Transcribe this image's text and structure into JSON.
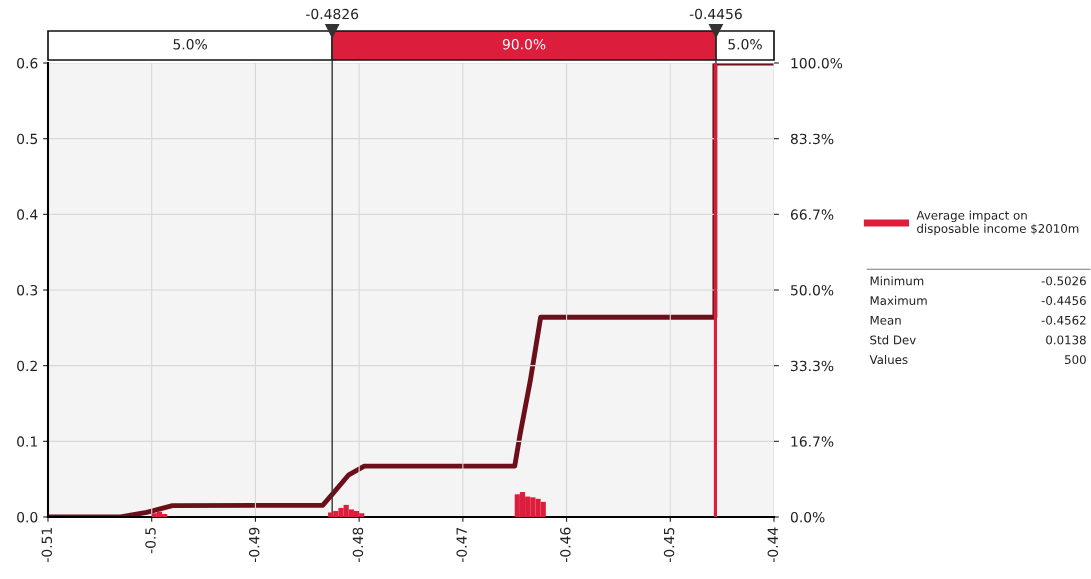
{
  "chart_data": {
    "type": "histogram",
    "bins": [
      -0.5,
      -0.4995,
      -0.499,
      -0.4985,
      -0.483,
      -0.4825,
      -0.482,
      -0.4815,
      -0.481,
      -0.4805,
      -0.48,
      -0.4795,
      -0.465,
      -0.4645,
      -0.464,
      -0.4635,
      -0.463,
      -0.4625,
      -0.462,
      -0.4458,
      -0.4455
    ],
    "series": [
      {
        "name": "Average impact on disposable income $2010m",
        "color": "#dc1e3c",
        "values": [
          0.005,
          0.007,
          0.004,
          0,
          0.006,
          0.008,
          0.012,
          0.016,
          0.01,
          0.008,
          0.005,
          0,
          0.03,
          0.033,
          0.027,
          0.026,
          0.024,
          0.02,
          0,
          0.6
        ]
      },
      {
        "type": "line",
        "axis": "y2",
        "color": "#6b0f1a",
        "x": [
          -0.51,
          -0.503,
          -0.5005,
          -0.498,
          -0.4835,
          -0.4826,
          -0.481,
          -0.4795,
          -0.465,
          -0.4645,
          -0.4635,
          -0.4625,
          -0.4457,
          -0.4457,
          -0.44
        ],
        "values": [
          0,
          0,
          1,
          2.5,
          2.6,
          5,
          9.3,
          11.2,
          11.2,
          18,
          30,
          44,
          44,
          100,
          100
        ]
      }
    ],
    "xlim": [
      -0.51,
      -0.44
    ],
    "xticks": [
      -0.51,
      -0.5,
      -0.49,
      -0.48,
      -0.47,
      -0.46,
      -0.45,
      -0.44
    ],
    "ylim": [
      0,
      0.6
    ],
    "yticks": [
      {
        "value": 0,
        "label": "0.0"
      },
      {
        "value": 0.1,
        "label": "0.1"
      },
      {
        "value": 0.2,
        "label": "0.2"
      },
      {
        "value": 0.3,
        "label": "0.3"
      },
      {
        "value": 0.4,
        "label": "0.4"
      },
      {
        "value": 0.5,
        "label": "0.5"
      },
      {
        "value": 0.6,
        "label": "0.6"
      }
    ],
    "y2lim": [
      0,
      100
    ],
    "y2ticks": [
      {
        "value": 0,
        "label": "0.0%"
      },
      {
        "value": 16.667,
        "label": "16.7%"
      },
      {
        "value": 33.333,
        "label": "33.3%"
      },
      {
        "value": 50,
        "label": "50.0%"
      },
      {
        "value": 66.667,
        "label": "66.7%"
      },
      {
        "value": 83.333,
        "label": "83.3%"
      },
      {
        "value": 100,
        "label": "100.0%"
      }
    ],
    "ref_lines": [
      {
        "axis": "x",
        "value": -0.4826,
        "label": "-0.4826",
        "color": "#333333"
      },
      {
        "axis": "x",
        "value": -0.4456,
        "label": "-0.4456",
        "color": "#333333"
      }
    ],
    "annotations": [
      "5.0%",
      "90.0%",
      "5.0%",
      "Minimum -0.5026",
      "Maximum -0.4456",
      "Mean -0.4562",
      "Std Dev 0.0138",
      "Values 500"
    ],
    "grid": true,
    "legend": "right"
  }
}
